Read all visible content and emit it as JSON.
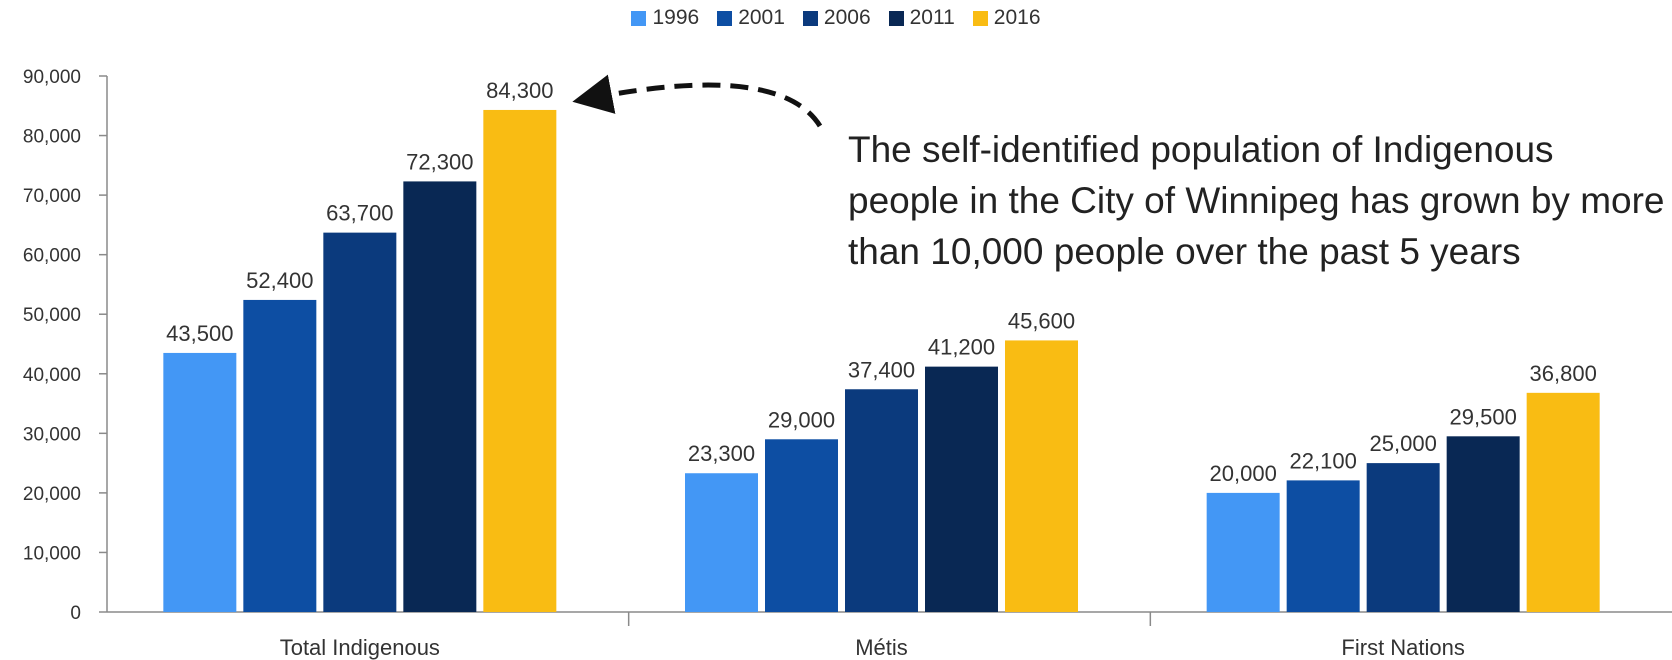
{
  "chart_data": {
    "type": "bar",
    "categories": [
      "Total Indigenous",
      "Métis",
      "First Nations"
    ],
    "series": [
      {
        "name": "1996",
        "color": "#4397F5",
        "values": [
          43500,
          23300,
          20000
        ],
        "labels": [
          "43,500",
          "23,300",
          "20,000"
        ]
      },
      {
        "name": "2001",
        "color": "#0D4EA3",
        "values": [
          52400,
          29000,
          22100
        ],
        "labels": [
          "52,400",
          "29,000",
          "22,100"
        ]
      },
      {
        "name": "2006",
        "color": "#0B3A7D",
        "values": [
          63700,
          37400,
          25000
        ],
        "labels": [
          "63,700",
          "37,400",
          "25,000"
        ]
      },
      {
        "name": "2011",
        "color": "#092854",
        "values": [
          72300,
          41200,
          29500
        ],
        "labels": [
          "72,300",
          "41,200",
          "29,500"
        ]
      },
      {
        "name": "2016",
        "color": "#F9BC13",
        "values": [
          84300,
          45600,
          36800
        ],
        "labels": [
          "84,300",
          "45,600",
          "36,800"
        ]
      }
    ],
    "ylim": [
      0,
      90000
    ],
    "yticks": [
      0,
      10000,
      20000,
      30000,
      40000,
      50000,
      60000,
      70000,
      80000,
      90000
    ],
    "ytick_labels": [
      "0",
      "10,000",
      "20,000",
      "30,000",
      "40,000",
      "50,000",
      "60,000",
      "70,000",
      "80,000",
      "90,000"
    ],
    "legend_position": "top-center",
    "grid": false,
    "annotation": "The self-identified population of Indigenous people in the City of Winnipeg has grown by more than 10,000 people over the past 5 years"
  }
}
